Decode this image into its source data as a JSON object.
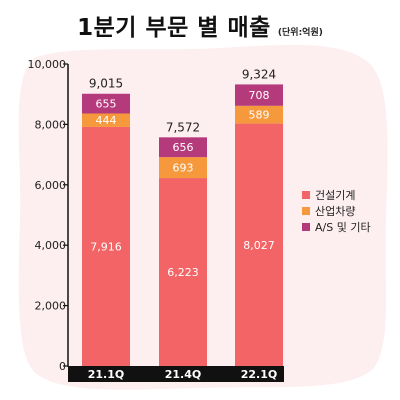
{
  "header": {
    "title": "1분기 부문 별 매출",
    "unit": "(단위:억원)"
  },
  "colors": {
    "background_blob": "#fdeef0",
    "axis": "#111111",
    "category_band": "#111111"
  },
  "chart_data": {
    "type": "bar",
    "stacked": true,
    "title": "1분기 부문 별 매출",
    "subtitle": "(단위:억원)",
    "categories": [
      "21.1Q",
      "21.4Q",
      "22.1Q"
    ],
    "series": [
      {
        "name": "건설기계",
        "color": "#f26466",
        "values": [
          7916,
          6223,
          8027
        ],
        "labels": [
          "7,916",
          "6,223",
          "8,027"
        ]
      },
      {
        "name": "산업차량",
        "color": "#f6993d",
        "values": [
          444,
          693,
          589
        ],
        "labels": [
          "444",
          "693",
          "589"
        ]
      },
      {
        "name": "A/S 및 기타",
        "color": "#b53a7c",
        "values": [
          655,
          656,
          708
        ],
        "labels": [
          "655",
          "656",
          "708"
        ]
      }
    ],
    "totals": [
      9015,
      7572,
      9324
    ],
    "total_labels": [
      "9,015",
      "7,572",
      "9,324"
    ],
    "yticks": [
      "0",
      "2,000",
      "4,000",
      "6,000",
      "8,000",
      "10,000"
    ],
    "ylim": [
      0,
      10000
    ],
    "grid": false,
    "legend_position": "right"
  }
}
